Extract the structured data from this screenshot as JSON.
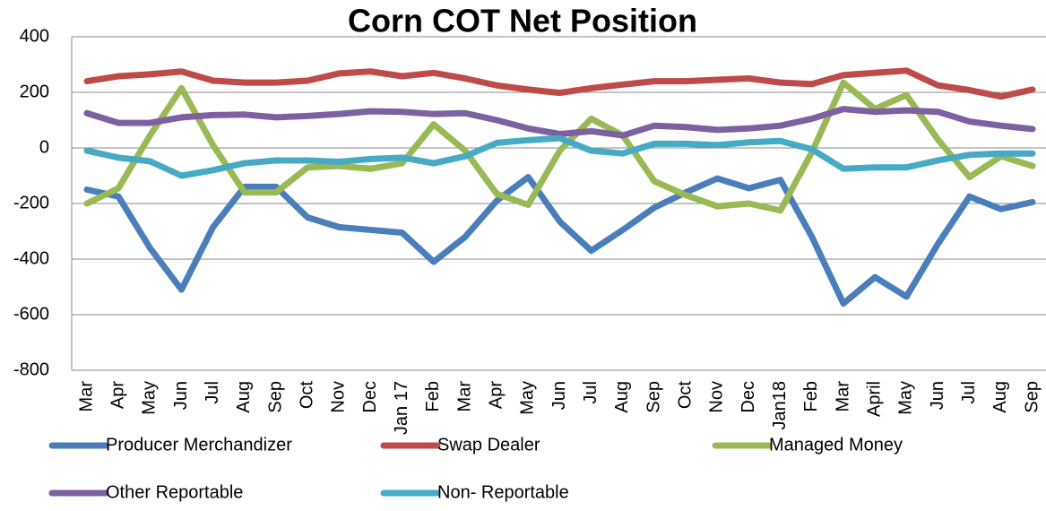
{
  "chart_data": {
    "type": "line",
    "title": "Corn COT Net Position",
    "categories": [
      "Mar",
      "Apr",
      "May",
      "Jun",
      "Jul",
      "Aug",
      "Sep",
      "Oct",
      "Nov",
      "Dec",
      "Jan 17",
      "Feb",
      "Mar",
      "Apr",
      "May",
      "Jun",
      "Jul",
      "Aug",
      "Sep",
      "Oct",
      "Nov",
      "Dec",
      "Jan18",
      "Feb",
      "Mar",
      "April",
      "May",
      "Jun",
      "Jul",
      "Aug",
      "Sep"
    ],
    "series": [
      {
        "name": "Producer Merchandizer",
        "color": "#4a7ebb",
        "values": [
          -150,
          -175,
          -360,
          -510,
          -285,
          -140,
          -140,
          -250,
          -285,
          -295,
          -305,
          -410,
          -320,
          -190,
          -105,
          -265,
          -370,
          -295,
          -215,
          -160,
          -110,
          -145,
          -115,
          -320,
          -560,
          -465,
          -535,
          -345,
          -175,
          -220,
          -195
        ]
      },
      {
        "name": "Swap Dealer",
        "color": "#be4b48",
        "values": [
          240,
          258,
          265,
          275,
          242,
          235,
          235,
          242,
          268,
          275,
          258,
          270,
          250,
          225,
          210,
          198,
          215,
          228,
          240,
          240,
          245,
          250,
          235,
          230,
          262,
          270,
          278,
          225,
          208,
          185,
          210
        ]
      },
      {
        "name": "Managed Money",
        "color": "#98b954",
        "values": [
          -200,
          -145,
          45,
          215,
          10,
          -160,
          -160,
          -70,
          -65,
          -75,
          -55,
          85,
          -10,
          -165,
          -205,
          -10,
          105,
          45,
          -120,
          -170,
          -210,
          -200,
          -225,
          -15,
          235,
          140,
          190,
          30,
          -105,
          -30,
          -65
        ]
      },
      {
        "name": "Other Reportable",
        "color": "#7d60a0",
        "values": [
          125,
          90,
          90,
          110,
          118,
          120,
          110,
          115,
          122,
          132,
          130,
          122,
          125,
          100,
          70,
          50,
          60,
          45,
          80,
          75,
          65,
          70,
          80,
          105,
          140,
          130,
          135,
          130,
          95,
          80,
          68
        ]
      },
      {
        "name": "Non- Reportable",
        "color": "#46aac5",
        "values": [
          -10,
          -35,
          -48,
          -100,
          -80,
          -55,
          -45,
          -45,
          -50,
          -40,
          -35,
          -55,
          -30,
          18,
          28,
          35,
          -10,
          -20,
          15,
          15,
          10,
          20,
          25,
          -5,
          -75,
          -70,
          -70,
          -45,
          -25,
          -20,
          -20
        ]
      }
    ],
    "ylim": [
      -800,
      400
    ],
    "yticks": [
      -800,
      -600,
      -400,
      -200,
      0,
      200,
      400
    ],
    "grid": true
  }
}
